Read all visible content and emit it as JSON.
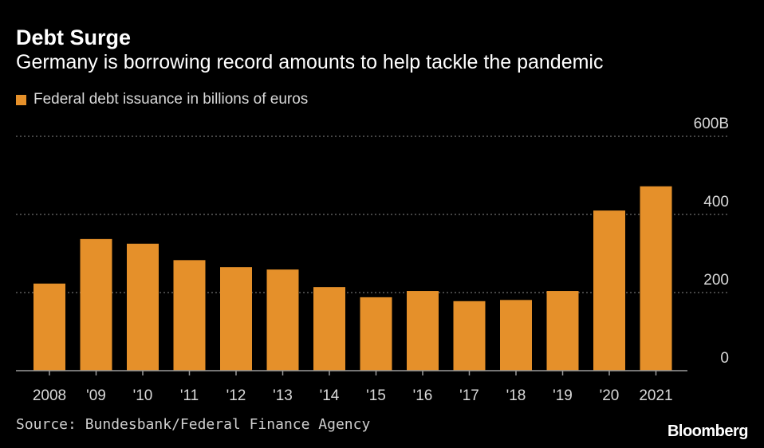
{
  "header": {
    "title": "Debt Surge",
    "subtitle": "Germany is borrowing record amounts to help tackle the pandemic"
  },
  "footer": {
    "source": "Source: Bundesbank/Federal Finance Agency",
    "brand": "Bloomberg"
  },
  "colors": {
    "background": "#000000",
    "bar": "#e5902a",
    "grid": "#8a8a8a",
    "axis": "#9a9a9a",
    "tick_text": "#d9d9d9"
  },
  "chart_data": {
    "type": "bar",
    "title": "Debt Surge",
    "subtitle": "Germany is borrowing record amounts to help tackle the pandemic",
    "series": [
      {
        "name": "Federal debt issuance in billions of euros",
        "values": [
          223,
          337,
          325,
          283,
          265,
          259,
          214,
          188,
          204,
          178,
          181,
          204,
          410,
          472
        ]
      }
    ],
    "categories": [
      "2008",
      "'09",
      "'10",
      "'11",
      "'12",
      "'13",
      "'14",
      "'15",
      "'16",
      "'17",
      "'18",
      "'19",
      "'20",
      "2021"
    ],
    "ylim": [
      0,
      600
    ],
    "yticks": [
      0,
      200,
      400,
      600
    ],
    "ytick_labels": [
      "0",
      "200",
      "400",
      "600B"
    ],
    "y_axis_position": "right",
    "grid": true,
    "legend": "top-left",
    "xlabel": "",
    "ylabel": ""
  }
}
